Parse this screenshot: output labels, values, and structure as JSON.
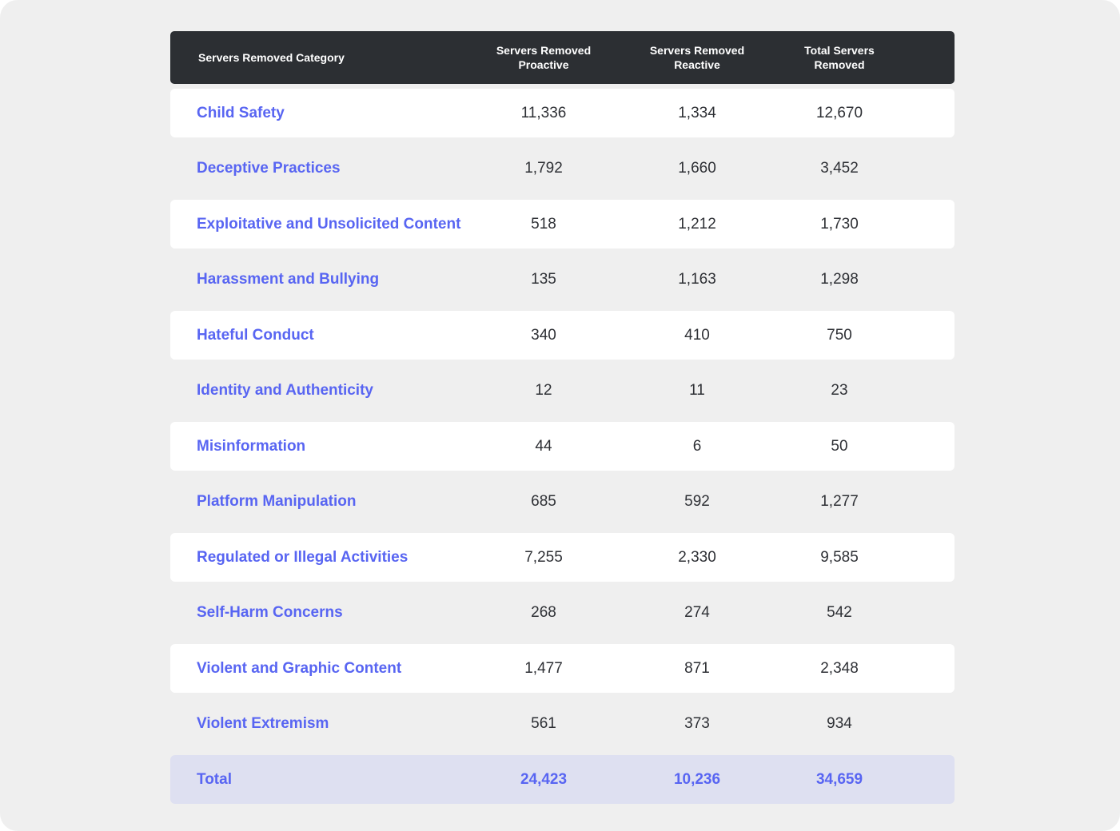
{
  "table": {
    "headers": [
      "Servers Removed Category",
      "Servers Removed\nProactive",
      "Servers Removed\nReactive",
      "Total Servers\nRemoved"
    ],
    "rows": [
      {
        "category": "Child Safety",
        "proactive": "11,336",
        "reactive": "1,334",
        "total": "12,670"
      },
      {
        "category": "Deceptive Practices",
        "proactive": "1,792",
        "reactive": "1,660",
        "total": "3,452"
      },
      {
        "category": "Exploitative and Unsolicited Content",
        "proactive": "518",
        "reactive": "1,212",
        "total": "1,730"
      },
      {
        "category": "Harassment and Bullying",
        "proactive": "135",
        "reactive": "1,163",
        "total": "1,298"
      },
      {
        "category": "Hateful Conduct",
        "proactive": "340",
        "reactive": "410",
        "total": "750"
      },
      {
        "category": "Identity and Authenticity",
        "proactive": "12",
        "reactive": "11",
        "total": "23"
      },
      {
        "category": "Misinformation",
        "proactive": "44",
        "reactive": "6",
        "total": "50"
      },
      {
        "category": "Platform Manipulation",
        "proactive": "685",
        "reactive": "592",
        "total": "1,277"
      },
      {
        "category": "Regulated or Illegal Activities",
        "proactive": "7,255",
        "reactive": "2,330",
        "total": "9,585"
      },
      {
        "category": "Self-Harm Concerns",
        "proactive": "268",
        "reactive": "274",
        "total": "542"
      },
      {
        "category": "Violent and Graphic Content",
        "proactive": "1,477",
        "reactive": "871",
        "total": "2,348"
      },
      {
        "category": "Violent Extremism",
        "proactive": "561",
        "reactive": "373",
        "total": "934"
      }
    ],
    "total_row": {
      "category": "Total",
      "proactive": "24,423",
      "reactive": "10,236",
      "total": "34,659"
    }
  },
  "colors": {
    "background": "#efefef",
    "header_bg": "#2c2f33",
    "category_text": "#5865f2",
    "total_row_bg": "#dee0f1"
  }
}
